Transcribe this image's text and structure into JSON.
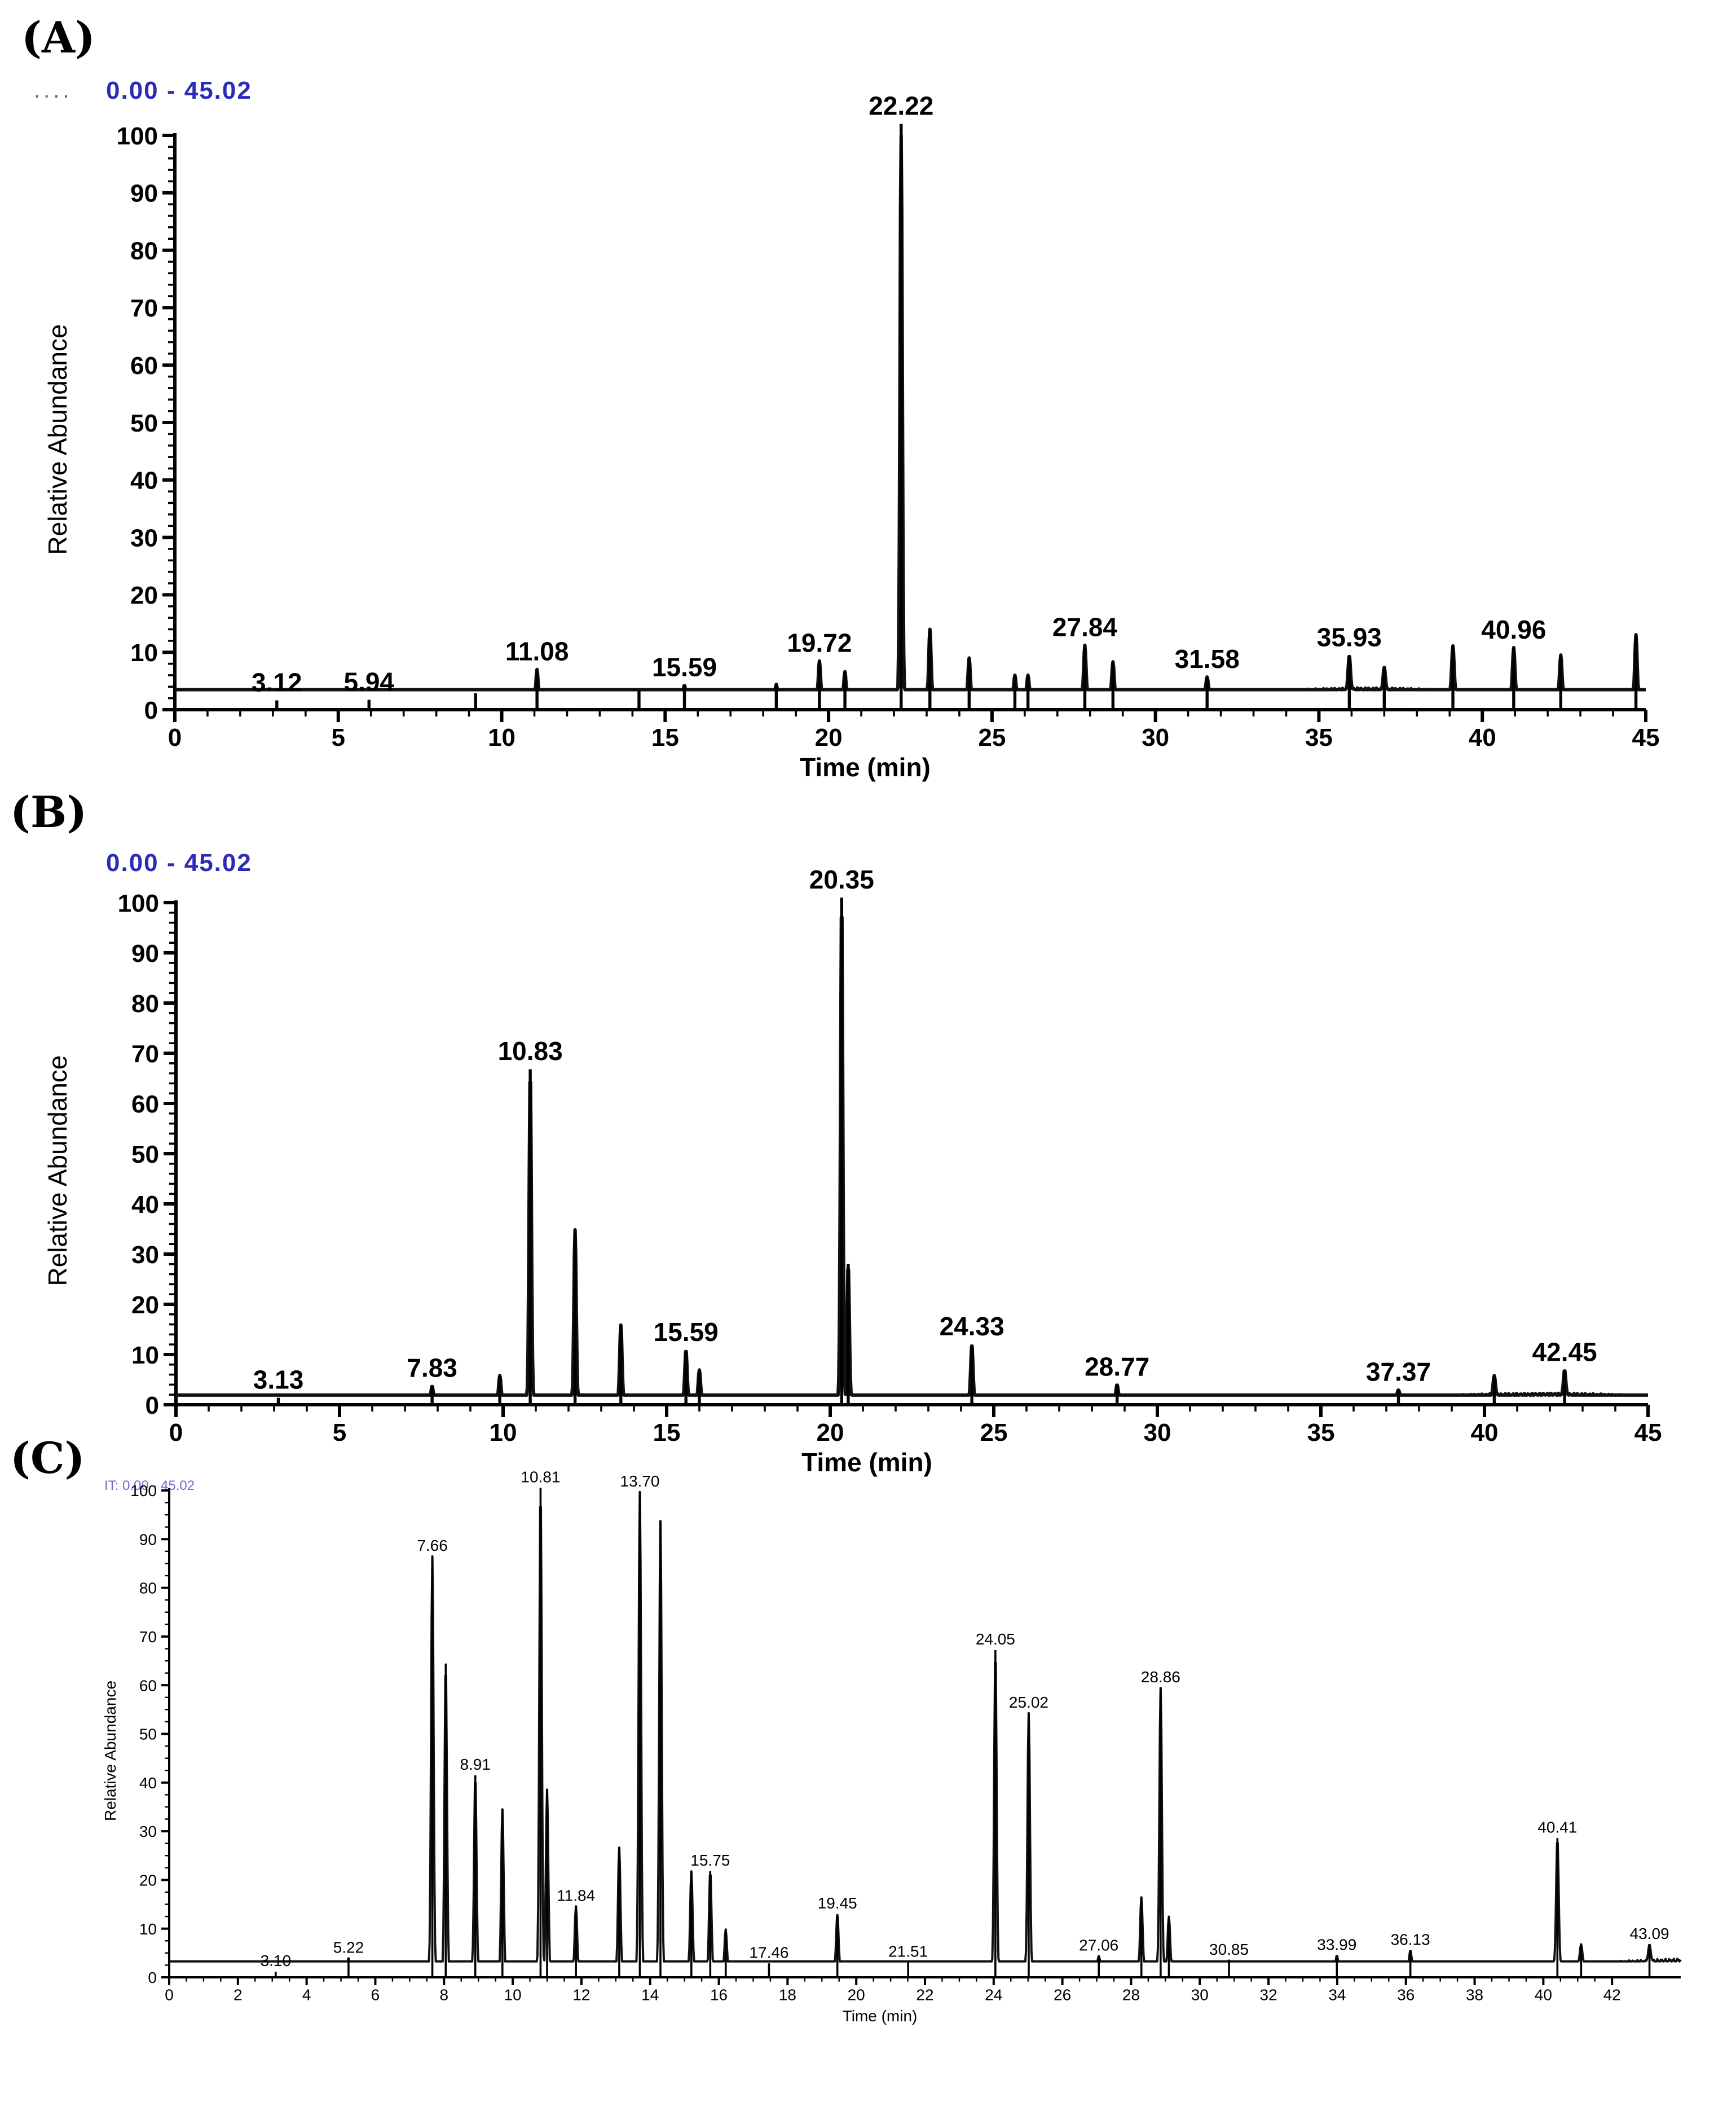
{
  "panels": [
    {
      "letter": "(A)",
      "range_text": "0.00 - 45.02",
      "dots": "....",
      "ylabel": "Relative Abundance",
      "xlabel": "Time (min)"
    },
    {
      "letter": "(B)",
      "range_text": "0.00 - 45.02",
      "ylabel": "Relative Abundance",
      "xlabel": "Time (min)"
    },
    {
      "letter": "(C)",
      "range_text": "IT: 0.00 - 45.02",
      "ylabel": "Relative Abundance",
      "xlabel": "Time (min)"
    }
  ],
  "chart_data": [
    {
      "type": "line",
      "title": "",
      "xlabel": "Time (min)",
      "ylabel": "Relative Abundance",
      "xlim": [
        0,
        45
      ],
      "ylim": [
        0,
        100
      ],
      "x_ticks": [
        0,
        5,
        10,
        15,
        20,
        25,
        30,
        35,
        40,
        45
      ],
      "y_ticks": [
        0,
        10,
        20,
        30,
        40,
        50,
        60,
        70,
        80,
        90,
        100
      ],
      "baseline": [
        [
          0,
          0.5
        ],
        [
          8,
          0.8
        ],
        [
          14,
          1.2
        ],
        [
          20,
          1.5
        ],
        [
          22,
          2
        ],
        [
          26,
          2
        ],
        [
          30,
          2.5
        ],
        [
          34,
          3
        ],
        [
          36,
          3.5
        ],
        [
          40,
          3
        ],
        [
          45,
          2
        ]
      ],
      "peaks": [
        {
          "rt": 3.12,
          "y": 1,
          "label": "3.12"
        },
        {
          "rt": 5.94,
          "y": 1,
          "label": "5.94"
        },
        {
          "rt": 9.2,
          "y": 2
        },
        {
          "rt": 11.08,
          "y": 6,
          "label": "11.08"
        },
        {
          "rt": 14.2,
          "y": 2
        },
        {
          "rt": 15.59,
          "y": 3,
          "label": "15.59"
        },
        {
          "rt": 18.4,
          "y": 3
        },
        {
          "rt": 19.72,
          "y": 7,
          "label": "19.72"
        },
        {
          "rt": 20.5,
          "y": 5
        },
        {
          "rt": 22.22,
          "y": 100,
          "label": "22.22"
        },
        {
          "rt": 23.1,
          "y": 12
        },
        {
          "rt": 24.3,
          "y": 7
        },
        {
          "rt": 25.7,
          "y": 4
        },
        {
          "rt": 26.1,
          "y": 4
        },
        {
          "rt": 27.84,
          "y": 9,
          "label": "27.84"
        },
        {
          "rt": 28.7,
          "y": 6
        },
        {
          "rt": 31.58,
          "y": 3,
          "label": "31.58"
        },
        {
          "rt": 35.93,
          "y": 6,
          "label": "35.93"
        },
        {
          "rt": 37.0,
          "y": 4
        },
        {
          "rt": 39.1,
          "y": 8
        },
        {
          "rt": 40.96,
          "y": 8,
          "label": "40.96"
        },
        {
          "rt": 42.4,
          "y": 7
        },
        {
          "rt": 44.7,
          "y": 11
        }
      ]
    },
    {
      "type": "line",
      "title": "",
      "xlabel": "Time (min)",
      "ylabel": "Relative Abundance",
      "xlim": [
        0,
        45
      ],
      "ylim": [
        0,
        100
      ],
      "x_ticks": [
        0,
        5,
        10,
        15,
        20,
        25,
        30,
        35,
        40,
        45
      ],
      "y_ticks": [
        0,
        10,
        20,
        30,
        40,
        50,
        60,
        70,
        80,
        90,
        100
      ],
      "baseline": [
        [
          0,
          0.5
        ],
        [
          10,
          0.8
        ],
        [
          20,
          1
        ],
        [
          30,
          1
        ],
        [
          38,
          1.5
        ],
        [
          42,
          2
        ],
        [
          45,
          1.5
        ]
      ],
      "peaks": [
        {
          "rt": 3.13,
          "y": 0.8,
          "label": "3.13"
        },
        {
          "rt": 7.83,
          "y": 3,
          "label": "7.83"
        },
        {
          "rt": 9.9,
          "y": 5
        },
        {
          "rt": 10.83,
          "y": 66,
          "label": "10.83"
        },
        {
          "rt": 12.2,
          "y": 34
        },
        {
          "rt": 13.6,
          "y": 15
        },
        {
          "rt": 15.59,
          "y": 10,
          "label": "15.59"
        },
        {
          "rt": 16.0,
          "y": 6
        },
        {
          "rt": 20.35,
          "y": 100,
          "label": "20.35"
        },
        {
          "rt": 20.55,
          "y": 27
        },
        {
          "rt": 24.33,
          "y": 11,
          "label": "24.33"
        },
        {
          "rt": 28.77,
          "y": 3,
          "label": "28.77"
        },
        {
          "rt": 37.37,
          "y": 1.5,
          "label": "37.37"
        },
        {
          "rt": 40.3,
          "y": 4
        },
        {
          "rt": 42.45,
          "y": 5,
          "label": "42.45"
        }
      ]
    },
    {
      "type": "line",
      "title": "",
      "xlabel": "Time (min)",
      "ylabel": "Relative Abundance",
      "xlim": [
        0,
        44
      ],
      "ylim": [
        0,
        100
      ],
      "x_ticks": [
        0,
        2,
        4,
        6,
        8,
        10,
        12,
        14,
        16,
        18,
        20,
        22,
        24,
        26,
        28,
        30,
        32,
        34,
        36,
        38,
        40,
        42
      ],
      "y_ticks": [
        0,
        10,
        20,
        30,
        40,
        50,
        60,
        70,
        80,
        90,
        100
      ],
      "baseline": [
        [
          0,
          0.3
        ],
        [
          10,
          0.5
        ],
        [
          20,
          1
        ],
        [
          30,
          1.5
        ],
        [
          36,
          1.5
        ],
        [
          40,
          2.5
        ],
        [
          44,
          3.5
        ]
      ],
      "peaks": [
        {
          "rt": 3.1,
          "y": 0.8,
          "label": "3.10"
        },
        {
          "rt": 5.22,
          "y": 3.5,
          "label": "5.22"
        },
        {
          "rt": 7.66,
          "y": 86,
          "label": "7.66"
        },
        {
          "rt": 8.05,
          "y": 64
        },
        {
          "rt": 8.91,
          "y": 41,
          "label": "8.91"
        },
        {
          "rt": 9.7,
          "y": 34
        },
        {
          "rt": 10.81,
          "y": 100,
          "label": "10.81"
        },
        {
          "rt": 11.0,
          "y": 38
        },
        {
          "rt": 11.84,
          "y": 14,
          "label": "11.84"
        },
        {
          "rt": 13.1,
          "y": 26
        },
        {
          "rt": 13.7,
          "y": 99,
          "label": "13.70"
        },
        {
          "rt": 14.3,
          "y": 93
        },
        {
          "rt": 15.2,
          "y": 21
        },
        {
          "rt": 15.75,
          "y": 21,
          "label": "15.75"
        },
        {
          "rt": 16.2,
          "y": 9
        },
        {
          "rt": 17.46,
          "y": 2,
          "label": "17.46"
        },
        {
          "rt": 19.45,
          "y": 12,
          "label": "19.45"
        },
        {
          "rt": 21.51,
          "y": 2,
          "label": "21.51"
        },
        {
          "rt": 24.05,
          "y": 66,
          "label": "24.05"
        },
        {
          "rt": 25.02,
          "y": 53,
          "label": "25.02"
        },
        {
          "rt": 27.06,
          "y": 3,
          "label": "27.06"
        },
        {
          "rt": 28.3,
          "y": 15
        },
        {
          "rt": 28.86,
          "y": 58,
          "label": "28.86"
        },
        {
          "rt": 29.1,
          "y": 11
        },
        {
          "rt": 30.85,
          "y": 2,
          "label": "30.85"
        },
        {
          "rt": 33.99,
          "y": 3,
          "label": "33.99"
        },
        {
          "rt": 36.13,
          "y": 4,
          "label": "36.13"
        },
        {
          "rt": 40.41,
          "y": 26,
          "label": "40.41"
        },
        {
          "rt": 41.1,
          "y": 4
        },
        {
          "rt": 43.09,
          "y": 3.5,
          "label": "43.09"
        }
      ]
    }
  ]
}
